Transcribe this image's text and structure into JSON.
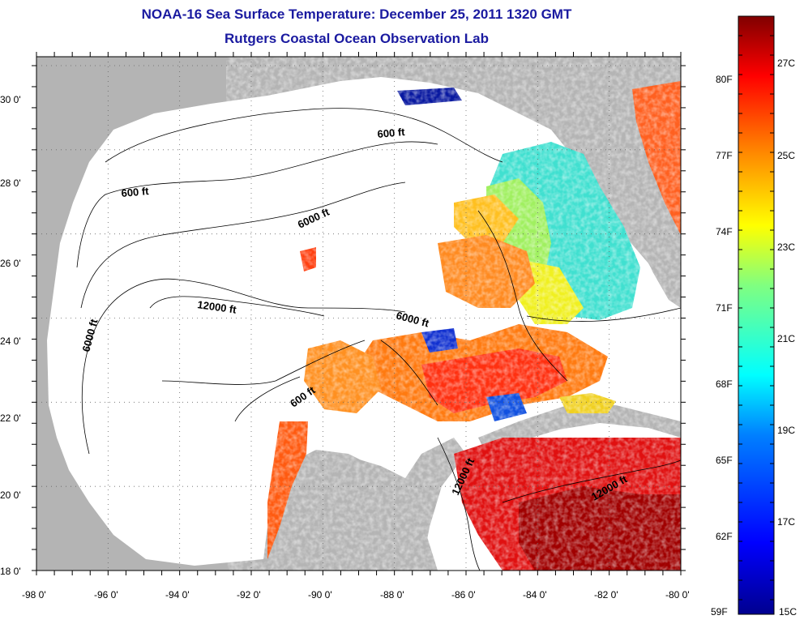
{
  "title": "NOAA-16 Sea Surface Temperature:  December 25, 2011 1320 GMT",
  "subtitle": "Rutgers Coastal Ocean Observation Lab",
  "lat_ticks": [
    "18 0'",
    "20 0'",
    "22 0'",
    "24 0'",
    "26 0'",
    "28 0'",
    "30 0'"
  ],
  "lon_ticks": [
    "-98 0'",
    "-96 0'",
    "-94 0'",
    "-92 0'",
    "-90 0'",
    "-88 0'",
    "-86 0'",
    "-84 0'",
    "-82 0'",
    "-80 0'"
  ],
  "contour_labels": {
    "c600_a": "600 ft",
    "c600_b": "600 ft",
    "c600_c": "600 ft",
    "c6000_a": "6000 ft",
    "c6000_b": "6000 ft",
    "c6000_c": "6000 ft",
    "c12000_a": "12000 ft",
    "c12000_b": "12000 ft",
    "c12000_c": "12000 ft"
  },
  "colorbar": {
    "fahrenheit": [
      "80F",
      "77F",
      "74F",
      "71F",
      "68F",
      "65F",
      "62F",
      "59F"
    ],
    "celsius": [
      "27C",
      "25C",
      "23C",
      "21C",
      "19C",
      "17C",
      "15C"
    ]
  },
  "colors": {
    "land": "#b4b4b4",
    "cloud": "#ffffff",
    "title": "#1a1aa0"
  }
}
